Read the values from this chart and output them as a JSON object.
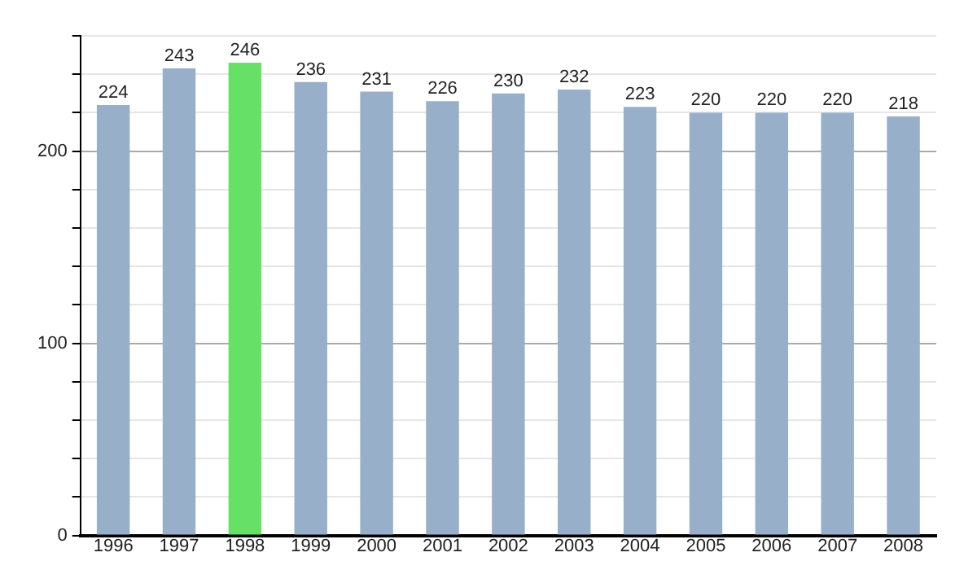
{
  "chart_data": {
    "type": "bar",
    "categories": [
      "1996",
      "1997",
      "1998",
      "1999",
      "2000",
      "2001",
      "2002",
      "2003",
      "2004",
      "2005",
      "2006",
      "2007",
      "2008"
    ],
    "values": [
      224,
      243,
      246,
      236,
      231,
      226,
      230,
      232,
      223,
      220,
      220,
      220,
      218
    ],
    "colors": [
      "#97afc9",
      "#97afc9",
      "#66e066",
      "#97afc9",
      "#97afc9",
      "#97afc9",
      "#97afc9",
      "#97afc9",
      "#97afc9",
      "#97afc9",
      "#97afc9",
      "#97afc9",
      "#97afc9"
    ],
    "ylim": [
      0,
      260
    ],
    "yticks": [
      0,
      {
        "value": 20,
        "label": null
      },
      {
        "value": 40,
        "label": null
      },
      {
        "value": 60,
        "label": null
      },
      {
        "value": 80,
        "label": null
      },
      100,
      {
        "value": 120,
        "label": null
      },
      {
        "value": 140,
        "label": null
      },
      {
        "value": 160,
        "label": null
      },
      {
        "value": 180,
        "label": null
      },
      200,
      {
        "value": 220,
        "label": null
      },
      {
        "value": 240,
        "label": null
      },
      {
        "value": 260,
        "label": null
      }
    ],
    "grid": "y",
    "data_labels": true,
    "legend": false
  }
}
